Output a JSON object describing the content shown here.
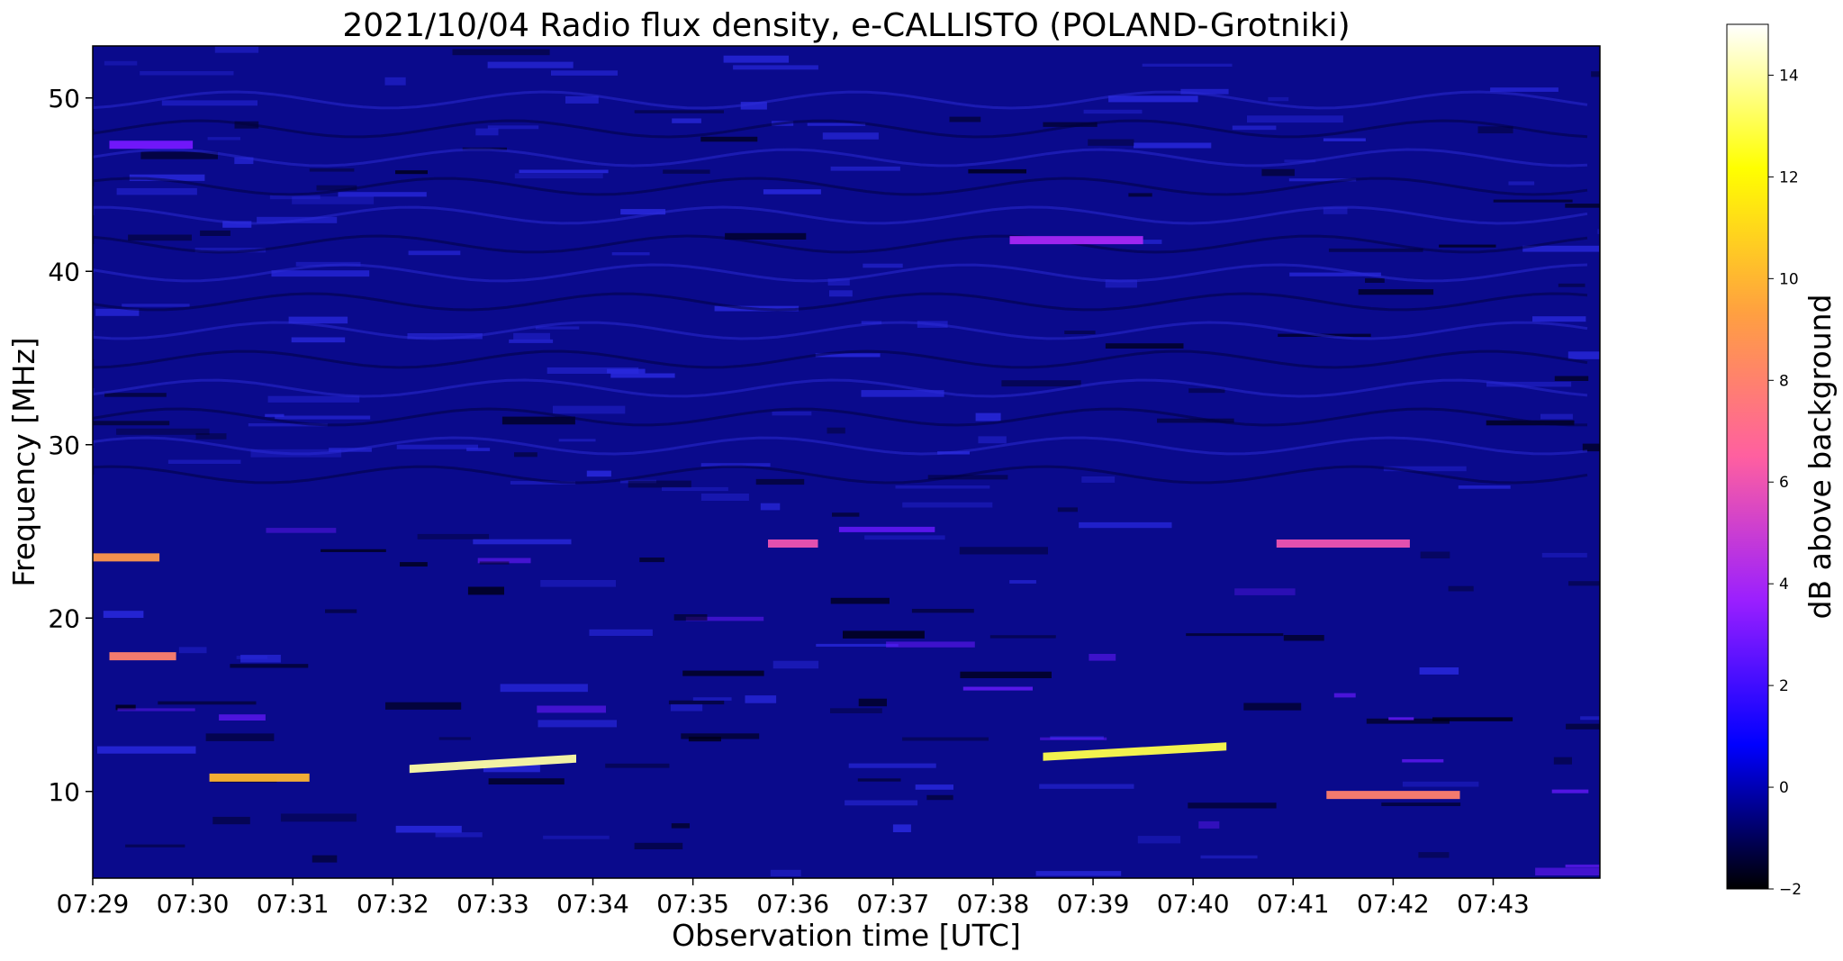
{
  "chart_data": {
    "type": "heatmap",
    "title": "2021/10/04  Radio flux density, e-CALLISTO (POLAND-Grotniki)",
    "xlabel": "Observation time [UTC]",
    "ylabel": "Frequency [MHz]",
    "x_ticks": [
      "07:29",
      "07:30",
      "07:31",
      "07:32",
      "07:33",
      "07:34",
      "07:35",
      "07:36",
      "07:37",
      "07:38",
      "07:39",
      "07:40",
      "07:41",
      "07:42",
      "07:43"
    ],
    "xlim": [
      "07:29:00",
      "07:44:04"
    ],
    "y_ticks": [
      10,
      20,
      30,
      40,
      50
    ],
    "ylim": [
      5,
      53
    ],
    "colorbar": {
      "label": "dB above background",
      "ticks": [
        -2,
        0,
        2,
        4,
        6,
        8,
        10,
        12,
        14
      ],
      "range": [
        -2,
        15
      ],
      "colormap": "gnuplot2",
      "stops": [
        "#000000",
        "#0000ff",
        "#9a1fff",
        "#ff5fa0",
        "#ffa040",
        "#ffff00",
        "#ffffff"
      ]
    },
    "background_level": "#0a0a8c",
    "features": [
      {
        "t_start": "07:32:10",
        "t_end": "07:33:50",
        "f_start": 11.3,
        "f_end": 11.9,
        "level": 14
      },
      {
        "t_start": "07:38:30",
        "t_end": "07:40:20",
        "f_start": 12.0,
        "f_end": 12.6,
        "level": 13
      },
      {
        "t_start": "07:30:10",
        "t_end": "07:31:10",
        "f_start": 10.8,
        "f_end": 10.8,
        "level": 10
      },
      {
        "t_start": "07:29:00",
        "t_end": "07:29:40",
        "f_start": 23.5,
        "f_end": 23.5,
        "level": 9
      },
      {
        "t_start": "07:29:10",
        "t_end": "07:29:50",
        "f_start": 17.8,
        "f_end": 17.8,
        "level": 8
      },
      {
        "t_start": "07:35:45",
        "t_end": "07:36:15",
        "f_start": 24.3,
        "f_end": 24.3,
        "level": 6
      },
      {
        "t_start": "07:40:50",
        "t_end": "07:42:10",
        "f_start": 24.3,
        "f_end": 24.3,
        "level": 6
      },
      {
        "t_start": "07:41:20",
        "t_end": "07:42:40",
        "f_start": 9.8,
        "f_end": 9.8,
        "level": 8
      },
      {
        "t_start": "07:38:10",
        "t_end": "07:39:30",
        "f_start": 41.8,
        "f_end": 41.8,
        "level": 4
      },
      {
        "t_start": "07:29:10",
        "t_end": "07:30:00",
        "f_start": 47.3,
        "f_end": 47.3,
        "level": 3
      }
    ]
  }
}
